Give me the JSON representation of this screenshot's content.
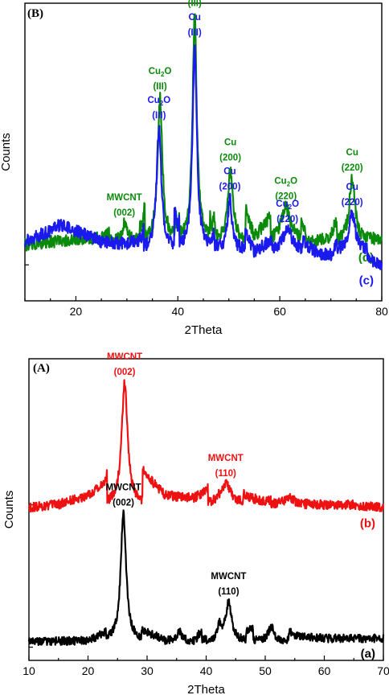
{
  "chart_data": [
    {
      "panel": "(B)",
      "type": "line",
      "xlabel": "2Theta",
      "ylabel": "Counts",
      "xlim": [
        10,
        80
      ],
      "x_ticks": [
        20,
        40,
        60,
        80
      ],
      "x_tick_labels": [
        "20",
        "40",
        "60",
        "80"
      ],
      "series": [
        {
          "name": "(d)",
          "color": "#0a8a0a",
          "baseline": 0.2,
          "noise": 0.022,
          "x": [
            10,
            15,
            20,
            25,
            29.5,
            33,
            36.5,
            40,
            43.3,
            46.5,
            50.3,
            55,
            61.2,
            66,
            70,
            74.2,
            77,
            80
          ],
          "y": [
            0.19,
            0.2,
            0.21,
            0.21,
            0.28,
            0.24,
            0.72,
            0.21,
            1.0,
            0.22,
            0.46,
            0.21,
            0.34,
            0.19,
            0.21,
            0.42,
            0.21,
            0.2
          ],
          "peaks": [
            {
              "x": 29.5,
              "amp": 0.06,
              "w": 0.6
            },
            {
              "x": 36.5,
              "amp": 0.5,
              "w": 0.55
            },
            {
              "x": 43.3,
              "amp": 0.79,
              "w": 0.5
            },
            {
              "x": 50.3,
              "amp": 0.25,
              "w": 0.6
            },
            {
              "x": 61.2,
              "amp": 0.12,
              "w": 1.1
            },
            {
              "x": 74.2,
              "amp": 0.22,
              "w": 0.7
            }
          ]
        },
        {
          "name": "(c)",
          "color": "#1a1aee",
          "baseline": 0.17,
          "noise": 0.022,
          "x": [
            10,
            15,
            17,
            25,
            30,
            33,
            36.3,
            40,
            43.3,
            46,
            50.2,
            55,
            61.5,
            67,
            70,
            74.2,
            77,
            80
          ],
          "y": [
            0.2,
            0.24,
            0.26,
            0.2,
            0.19,
            0.2,
            0.63,
            0.22,
            0.9,
            0.17,
            0.34,
            0.16,
            0.24,
            0.16,
            0.15,
            0.28,
            0.14,
            0.12
          ],
          "peaks": [
            {
              "x": 36.3,
              "amp": 0.43,
              "w": 0.55
            },
            {
              "x": 43.3,
              "amp": 0.72,
              "w": 0.5
            },
            {
              "x": 50.2,
              "amp": 0.18,
              "w": 0.5
            },
            {
              "x": 61.5,
              "amp": 0.07,
              "w": 1.1
            },
            {
              "x": 74.2,
              "amp": 0.13,
              "w": 0.7
            }
          ]
        }
      ],
      "annotations": [
        {
          "series": "(d)",
          "x": 29.5,
          "lines": [
            "MWCNT",
            "(002)"
          ]
        },
        {
          "series": "(d)",
          "x": 36.5,
          "lines": [
            "Cu|2|O",
            "(III)"
          ]
        },
        {
          "series": "(d)",
          "x": 43.3,
          "lines": [
            "Cu",
            "(III)"
          ]
        },
        {
          "series": "(d)",
          "x": 50.3,
          "lines": [
            "Cu",
            "(200)"
          ]
        },
        {
          "series": "(d)",
          "x": 61.2,
          "lines": [
            "Cu|2|O",
            "(220)"
          ]
        },
        {
          "series": "(d)",
          "x": 74.2,
          "lines": [
            "Cu",
            "(220)"
          ]
        },
        {
          "series": "(c)",
          "x": 36.3,
          "lines": [
            "Cu|2|O",
            "(III)"
          ]
        },
        {
          "series": "(c)",
          "x": 43.3,
          "lines": [
            "Cu",
            "(III)"
          ]
        },
        {
          "series": "(c)",
          "x": 50.2,
          "lines": [
            "Cu",
            "(200)"
          ]
        },
        {
          "series": "(c)",
          "x": 61.5,
          "lines": [
            "Cu|2|O",
            "(220)"
          ]
        },
        {
          "series": "(c)",
          "x": 74.2,
          "lines": [
            "Cu",
            "(220)"
          ]
        }
      ]
    },
    {
      "panel": "(A)",
      "type": "line",
      "xlabel": "2Theta",
      "ylabel": "Counts",
      "xlim": [
        10,
        70
      ],
      "x_ticks": [
        10,
        20,
        30,
        40,
        50,
        60,
        70
      ],
      "x_tick_labels": [
        "10",
        "20",
        "30",
        "40",
        "50",
        "60",
        "70"
      ],
      "series": [
        {
          "name": "(b)",
          "color": "#ee1111",
          "baseline": 0.53,
          "noise": 0.016,
          "x": [
            10,
            15,
            20,
            23,
            26.2,
            29,
            33,
            38,
            43.3,
            47,
            50,
            54,
            58,
            65,
            70
          ],
          "y": [
            0.52,
            0.53,
            0.56,
            0.6,
            1.0,
            0.64,
            0.56,
            0.55,
            0.61,
            0.55,
            0.54,
            0.56,
            0.53,
            0.53,
            0.52
          ],
          "peaks": [
            {
              "x": 26.2,
              "amp": 0.42,
              "w": 0.6
            },
            {
              "x": 43.3,
              "amp": 0.07,
              "w": 1.2
            },
            {
              "x": 54,
              "amp": 0.025,
              "w": 1.0
            }
          ]
        },
        {
          "name": "(a)",
          "color": "#000000",
          "baseline": 0.06,
          "noise": 0.014,
          "x": [
            10,
            15,
            20,
            23,
            26,
            29,
            32,
            35.5,
            38,
            42,
            43.8,
            47,
            51,
            55,
            60,
            70
          ],
          "y": [
            0.06,
            0.06,
            0.06,
            0.08,
            0.52,
            0.09,
            0.07,
            0.1,
            0.07,
            0.12,
            0.21,
            0.09,
            0.14,
            0.08,
            0.07,
            0.07
          ],
          "peaks": [
            {
              "x": 26.0,
              "amp": 0.44,
              "w": 0.55
            },
            {
              "x": 35.5,
              "amp": 0.03,
              "w": 0.5
            },
            {
              "x": 42.3,
              "amp": 0.05,
              "w": 0.4
            },
            {
              "x": 43.8,
              "amp": 0.13,
              "w": 0.6
            },
            {
              "x": 51,
              "amp": 0.05,
              "w": 0.6
            }
          ]
        }
      ],
      "annotations": [
        {
          "series": "(b)",
          "x": 26.2,
          "lines": [
            "MWCNT",
            "(002)"
          ]
        },
        {
          "series": "(b)",
          "x": 43.3,
          "lines": [
            "MWCNT",
            "(110)"
          ]
        },
        {
          "series": "(a)",
          "x": 26.0,
          "lines": [
            "MWCNT",
            "(002)"
          ]
        },
        {
          "series": "(a)",
          "x": 43.8,
          "lines": [
            "MWCNT",
            "(110)"
          ]
        }
      ]
    }
  ]
}
